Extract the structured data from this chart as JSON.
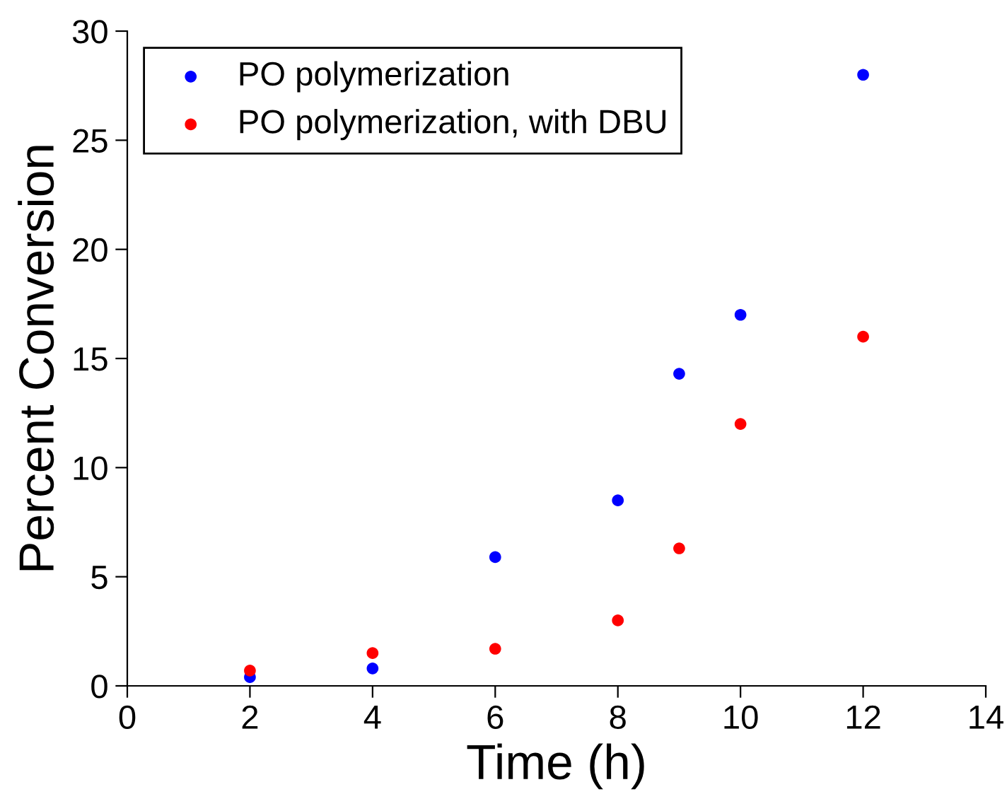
{
  "chart_data": {
    "type": "scatter",
    "xlabel": "Time (h)",
    "ylabel": "Percent Conversion",
    "xlim": [
      0,
      14
    ],
    "xticks": [
      0,
      2,
      4,
      6,
      8,
      10,
      12,
      14
    ],
    "ylim": [
      0,
      30
    ],
    "yticks": [
      0,
      5,
      10,
      15,
      20,
      25,
      30
    ],
    "grid": false,
    "legend": "top left",
    "marker": "circle",
    "series": [
      {
        "name": "PO polymerization",
        "color": "#0000ff",
        "x": [
          2,
          4,
          6,
          8,
          9,
          10,
          12
        ],
        "values": [
          0.4,
          0.8,
          5.9,
          8.5,
          14.3,
          17.0,
          28.0
        ]
      },
      {
        "name": "PO polymerization, with DBU",
        "color": "#ff0000",
        "x": [
          2,
          4,
          6,
          8,
          9,
          10,
          12
        ],
        "values": [
          0.7,
          1.5,
          1.7,
          3.0,
          6.3,
          12.0,
          16.0
        ]
      }
    ]
  }
}
